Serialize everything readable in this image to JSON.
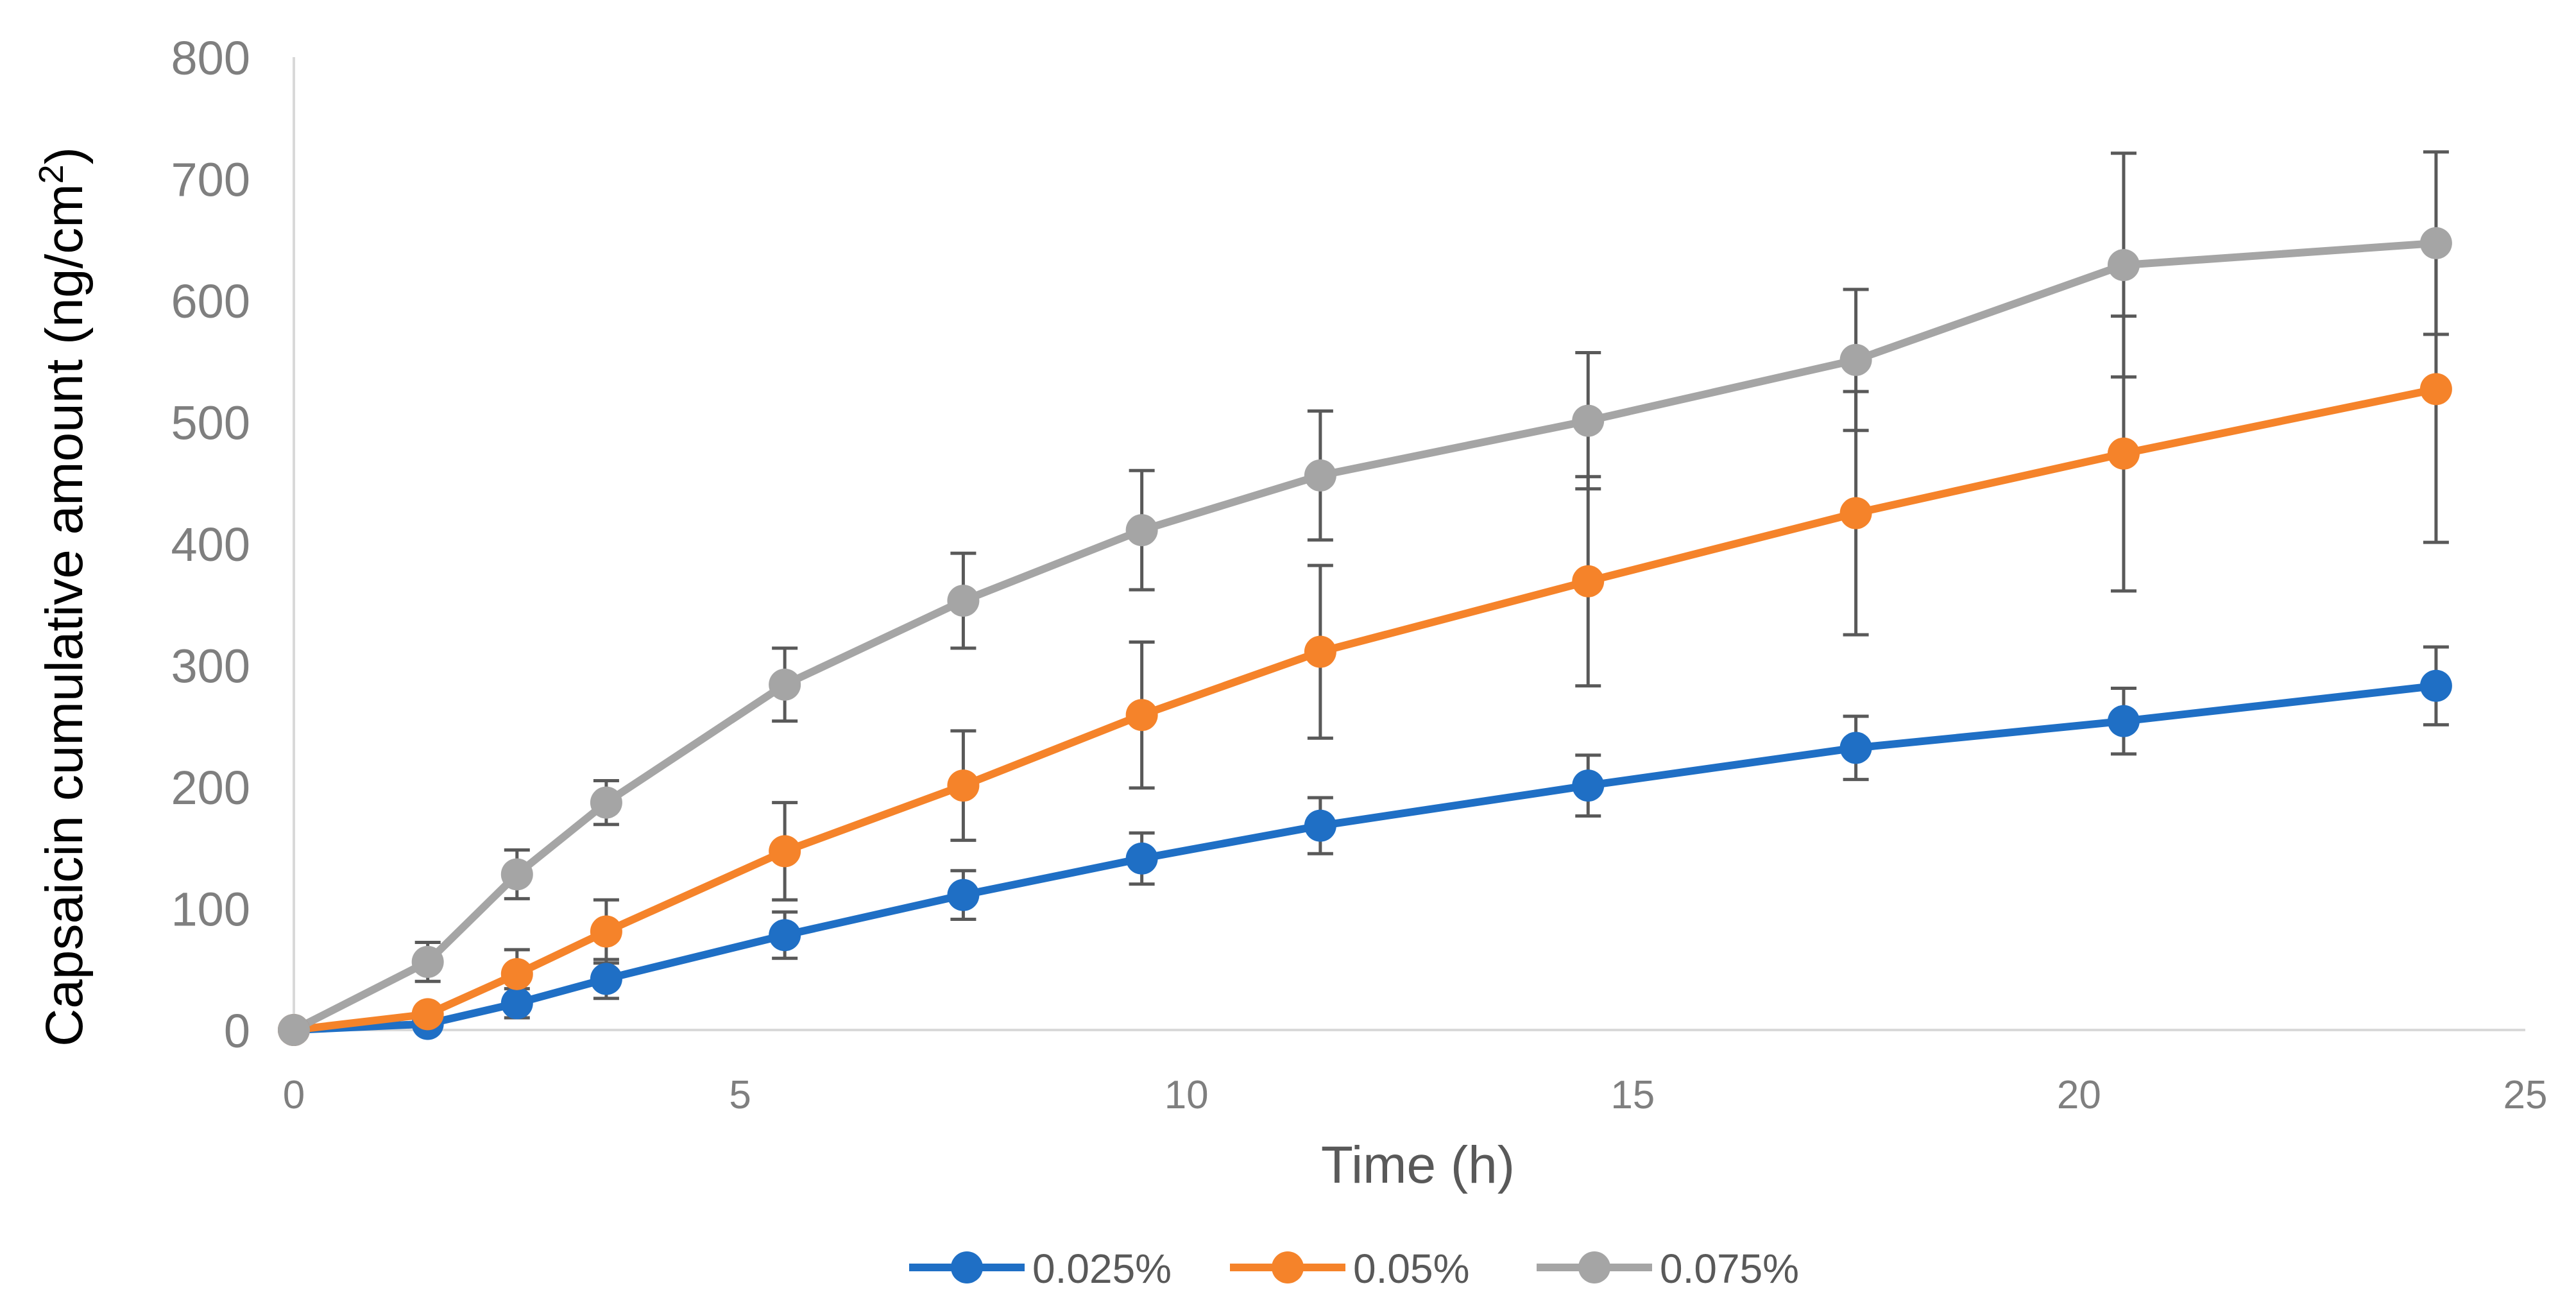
{
  "chart_data": {
    "type": "line",
    "title": "",
    "xlabel": "Time (h)",
    "ylabel_main": "Capsaicin cumulative amount (ng/cm",
    "ylabel_sup": "2",
    "ylabel_close": ")",
    "xlim": [
      0,
      25
    ],
    "ylim": [
      0,
      800
    ],
    "xticks": [
      "0",
      "5",
      "10",
      "15",
      "20",
      "25"
    ],
    "yticks": [
      "0",
      "100",
      "200",
      "300",
      "400",
      "500",
      "600",
      "700",
      "800"
    ],
    "grid": false,
    "legend_position": "bottom",
    "x": [
      0,
      1.5,
      2.5,
      3.5,
      5.5,
      7.5,
      9.5,
      11.5,
      14.5,
      17.5,
      20.5,
      24
    ],
    "series": [
      {
        "name": "0.025%",
        "color": "#1f6fc5",
        "values": [
          0,
          5,
          22,
          42,
          78,
          111,
          141,
          168,
          201,
          232,
          254,
          283
        ],
        "errors": [
          0,
          4,
          12,
          16,
          19,
          20,
          21,
          23,
          25,
          26,
          27,
          32
        ]
      },
      {
        "name": "0.05%",
        "color": "#f5832a",
        "values": [
          0,
          13,
          46,
          81,
          147,
          201,
          259,
          311,
          369,
          425,
          474,
          527
        ],
        "errors": [
          0,
          6,
          20,
          26,
          40,
          45,
          60,
          71,
          86,
          100,
          113,
          126
        ]
      },
      {
        "name": "0.075%",
        "color": "#a5a5a5",
        "values": [
          0,
          56,
          128,
          187,
          284,
          353,
          411,
          456,
          501,
          551,
          629,
          647
        ],
        "errors": [
          0,
          16,
          20,
          18,
          30,
          39,
          49,
          53,
          56,
          58,
          92,
          75
        ]
      }
    ]
  }
}
